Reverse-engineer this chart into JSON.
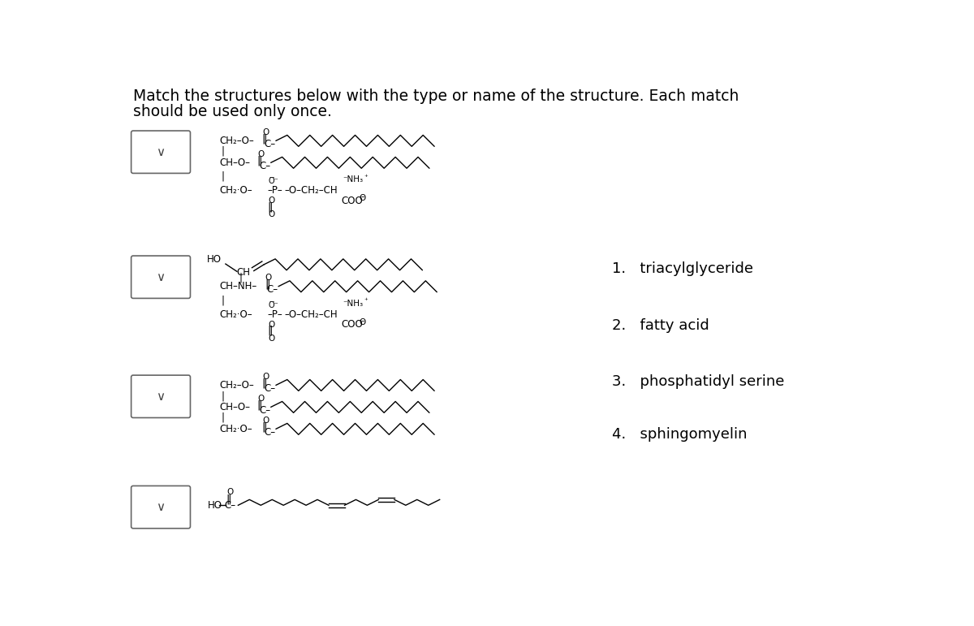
{
  "title_line1": "Match the structures below with the type or name of the structure. Each match",
  "title_line2": "should be used only once.",
  "background_color": "#ffffff",
  "text_color": "#000000",
  "options": [
    "1.   triacylglyceride",
    "2.   fatty acid",
    "3.   phosphatidyl serine",
    "4.   sphingomyelin"
  ],
  "figsize": [
    12.0,
    7.71
  ],
  "dpi": 100
}
